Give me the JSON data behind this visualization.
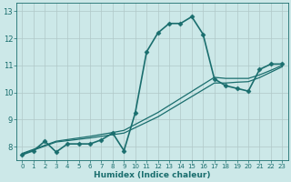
{
  "background_color": "#cce8e8",
  "grid_color": "#b0c8c8",
  "line_color": "#1a6e6e",
  "xlabel": "Humidex (Indice chaleur)",
  "ylim": [
    7.5,
    13.3
  ],
  "xlim": [
    -0.5,
    23.5
  ],
  "yticks": [
    8,
    9,
    10,
    11,
    12,
    13
  ],
  "xticks": [
    0,
    1,
    2,
    3,
    4,
    5,
    6,
    7,
    8,
    9,
    10,
    11,
    12,
    13,
    14,
    15,
    16,
    17,
    18,
    19,
    20,
    21,
    22,
    23
  ],
  "series": [
    {
      "x": [
        0,
        1,
        2,
        3,
        4,
        5,
        6,
        7,
        8,
        9,
        10,
        11,
        12,
        13,
        14,
        15,
        16,
        17,
        18,
        19,
        20,
        21,
        22,
        23
      ],
      "y": [
        7.7,
        7.85,
        8.2,
        7.8,
        8.1,
        8.1,
        8.1,
        8.25,
        8.5,
        7.85,
        9.25,
        11.5,
        12.2,
        12.55,
        12.55,
        12.8,
        12.15,
        10.5,
        10.25,
        10.15,
        10.05,
        10.85,
        11.05,
        11.05
      ],
      "marker": "D",
      "markersize": 2.5,
      "linewidth": 1.2,
      "has_marker": true
    },
    {
      "x": [
        0,
        1,
        2,
        3,
        4,
        5,
        6,
        7,
        8,
        9,
        10,
        11,
        12,
        13,
        14,
        15,
        16,
        17,
        18,
        19,
        20,
        21,
        22,
        23
      ],
      "y": [
        7.72,
        7.87,
        8.02,
        8.17,
        8.22,
        8.27,
        8.32,
        8.38,
        8.44,
        8.5,
        8.7,
        8.9,
        9.1,
        9.35,
        9.6,
        9.85,
        10.1,
        10.35,
        10.35,
        10.38,
        10.4,
        10.55,
        10.75,
        10.95
      ],
      "marker": null,
      "markersize": 0,
      "linewidth": 0.9,
      "has_marker": false
    },
    {
      "x": [
        0,
        1,
        2,
        3,
        4,
        5,
        6,
        7,
        8,
        9,
        10,
        11,
        12,
        13,
        14,
        15,
        16,
        17,
        18,
        19,
        20,
        21,
        22,
        23
      ],
      "y": [
        7.75,
        7.9,
        8.05,
        8.2,
        8.26,
        8.32,
        8.38,
        8.45,
        8.52,
        8.6,
        8.82,
        9.04,
        9.26,
        9.52,
        9.78,
        10.04,
        10.3,
        10.56,
        10.52,
        10.52,
        10.52,
        10.65,
        10.82,
        11.0
      ],
      "marker": null,
      "markersize": 0,
      "linewidth": 0.9,
      "has_marker": false
    }
  ]
}
